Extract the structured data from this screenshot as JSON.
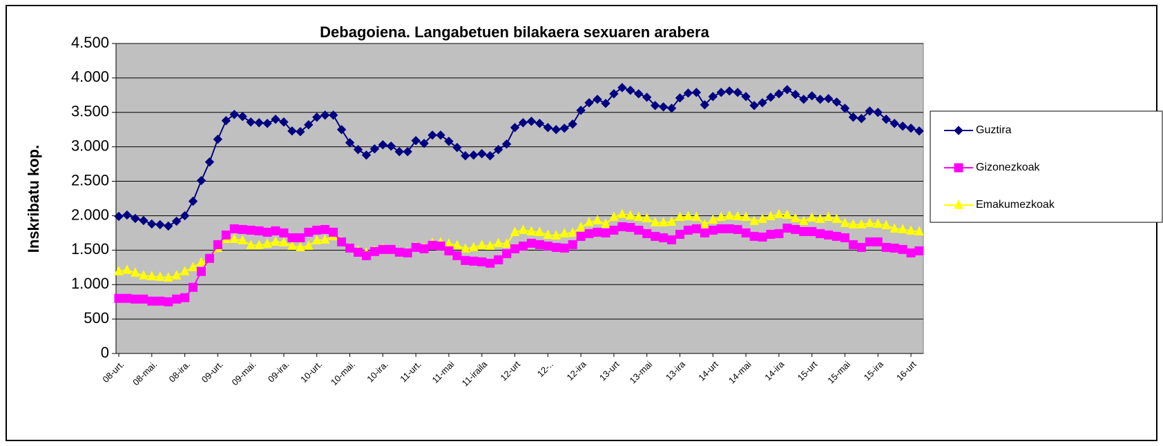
{
  "chart_data": {
    "type": "line",
    "title": "Debagoiena. Langabetuen bilakaera sexuaren arabera",
    "y_label": "Inskribatu kop.",
    "categories": [
      "08-urt.",
      null,
      null,
      null,
      "08-mai.",
      null,
      null,
      null,
      "08-ira.",
      null,
      null,
      null,
      "09-urt.",
      null,
      null,
      null,
      "09-mai.",
      null,
      null,
      null,
      "09-ira.",
      null,
      null,
      null,
      "10-urt.",
      null,
      null,
      null,
      "10-mai.",
      null,
      null,
      null,
      "10-ira.",
      null,
      null,
      null,
      "11-urt.",
      null,
      null,
      null,
      "11-mai",
      null,
      null,
      null,
      "11-iraila",
      null,
      null,
      null,
      "12-urt",
      null,
      null,
      null,
      "12-..",
      null,
      null,
      null,
      "12-ira",
      null,
      null,
      null,
      "13-urt",
      null,
      null,
      null,
      "13-mai",
      null,
      null,
      null,
      "13-ira",
      null,
      null,
      null,
      "14-urt",
      null,
      null,
      null,
      "14-mai",
      null,
      null,
      null,
      "14-ira",
      null,
      null,
      null,
      "15-urt",
      null,
      null,
      null,
      "15-mai",
      null,
      null,
      null,
      "15-ira",
      null,
      null,
      null,
      "16-urt",
      null
    ],
    "series": [
      {
        "name": "Guztira",
        "color": "#000080",
        "marker": "diamond",
        "values": [
          1990,
          2010,
          1960,
          1930,
          1880,
          1870,
          1850,
          1920,
          2000,
          2210,
          2510,
          2780,
          3110,
          3380,
          3470,
          3440,
          3360,
          3350,
          3340,
          3400,
          3360,
          3230,
          3220,
          3320,
          3430,
          3460,
          3460,
          3250,
          3060,
          2960,
          2880,
          2970,
          3030,
          3010,
          2930,
          2930,
          3090,
          3050,
          3170,
          3170,
          3080,
          2990,
          2870,
          2880,
          2900,
          2870,
          2960,
          3040,
          3280,
          3350,
          3370,
          3340,
          3280,
          3250,
          3270,
          3330,
          3530,
          3640,
          3690,
          3630,
          3770,
          3860,
          3820,
          3770,
          3720,
          3600,
          3580,
          3560,
          3710,
          3780,
          3790,
          3610,
          3730,
          3790,
          3810,
          3790,
          3730,
          3600,
          3640,
          3720,
          3770,
          3830,
          3760,
          3690,
          3740,
          3690,
          3700,
          3650,
          3560,
          3430,
          3410,
          3520,
          3500,
          3400,
          3340,
          3300,
          3270,
          3230
        ]
      },
      {
        "name": "Gizonezkoak",
        "color": "#FF00FF",
        "marker": "square",
        "values": [
          800,
          800,
          790,
          790,
          760,
          760,
          750,
          790,
          810,
          960,
          1190,
          1380,
          1580,
          1720,
          1810,
          1800,
          1790,
          1780,
          1760,
          1780,
          1750,
          1680,
          1680,
          1760,
          1790,
          1800,
          1760,
          1620,
          1530,
          1470,
          1420,
          1480,
          1510,
          1510,
          1470,
          1460,
          1540,
          1520,
          1570,
          1560,
          1490,
          1420,
          1350,
          1340,
          1330,
          1310,
          1360,
          1450,
          1520,
          1560,
          1600,
          1580,
          1560,
          1540,
          1530,
          1580,
          1700,
          1740,
          1760,
          1750,
          1790,
          1840,
          1830,
          1790,
          1740,
          1700,
          1680,
          1650,
          1730,
          1790,
          1810,
          1750,
          1790,
          1810,
          1810,
          1800,
          1750,
          1700,
          1690,
          1730,
          1740,
          1820,
          1800,
          1770,
          1770,
          1740,
          1720,
          1700,
          1680,
          1580,
          1540,
          1620,
          1620,
          1540,
          1530,
          1510,
          1460,
          1490
        ]
      },
      {
        "name": "Emakumezkoak",
        "color": "#FFFF00",
        "marker": "triangle",
        "values": [
          1190,
          1210,
          1170,
          1130,
          1120,
          1110,
          1100,
          1130,
          1190,
          1250,
          1320,
          1370,
          1530,
          1660,
          1660,
          1640,
          1570,
          1570,
          1590,
          1620,
          1610,
          1560,
          1540,
          1560,
          1640,
          1650,
          1700,
          1630,
          1530,
          1490,
          1460,
          1490,
          1520,
          1500,
          1460,
          1470,
          1550,
          1530,
          1600,
          1610,
          1590,
          1570,
          1520,
          1540,
          1570,
          1560,
          1600,
          1590,
          1760,
          1790,
          1770,
          1760,
          1720,
          1710,
          1740,
          1750,
          1830,
          1900,
          1930,
          1880,
          1980,
          2020,
          2000,
          1980,
          1960,
          1900,
          1900,
          1910,
          1980,
          1990,
          1980,
          1870,
          1940,
          1980,
          2000,
          1990,
          1980,
          1920,
          1950,
          1990,
          2020,
          2010,
          1960,
          1920,
          1970,
          1950,
          1980,
          1950,
          1890,
          1870,
          1870,
          1890,
          1880,
          1860,
          1810,
          1800,
          1780,
          1770
        ]
      }
    ],
    "ylim": [
      0,
      4500
    ],
    "yticks": [
      0,
      500,
      {
        "value": 1000,
        "label": "1.000"
      },
      {
        "value": 1500,
        "label": "1.500"
      },
      {
        "value": 2000,
        "label": "2.000"
      },
      {
        "value": 2500,
        "label": "2.500"
      },
      {
        "value": 3000,
        "label": "3.000"
      },
      {
        "value": 3500,
        "label": "3.500"
      },
      {
        "value": 4000,
        "label": "4.000"
      },
      {
        "value": 4500,
        "label": "4.500"
      }
    ],
    "grid": true,
    "legend": "right",
    "plot_background": "#C0C0C0"
  }
}
